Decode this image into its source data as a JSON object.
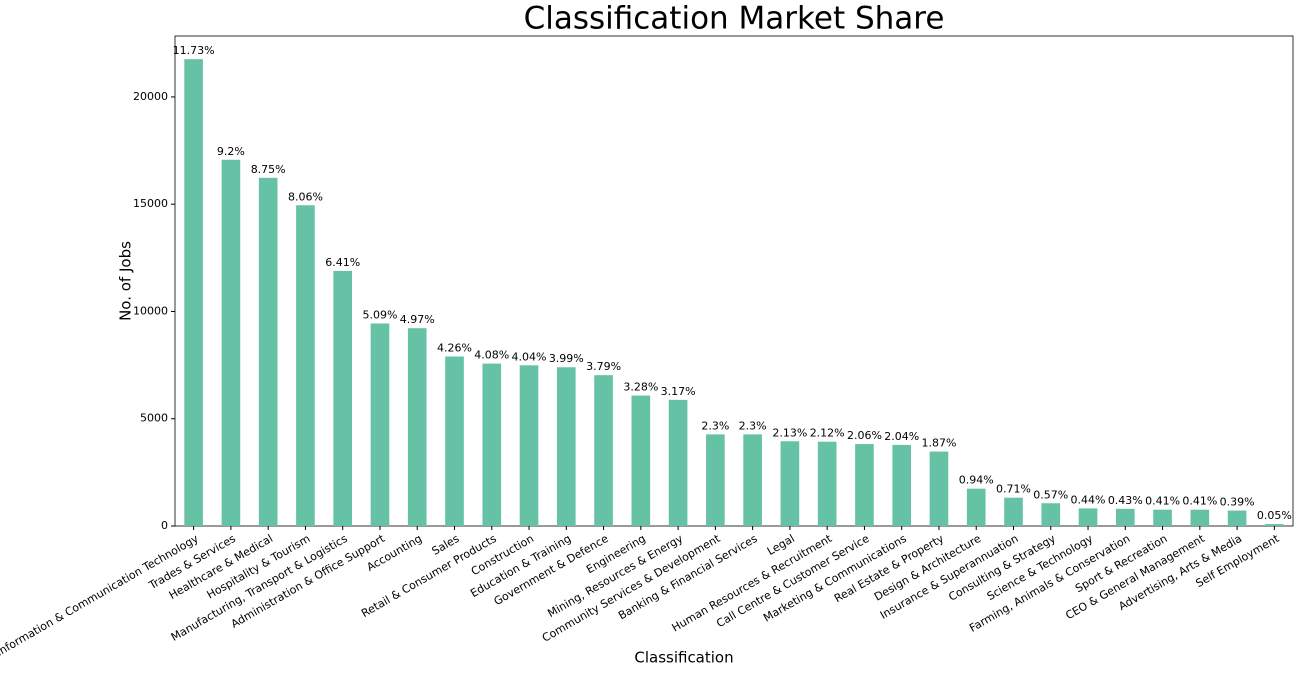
{
  "chart_data": {
    "type": "bar",
    "title": "Classification Market Share",
    "x_label": "Classification",
    "y_label": "No. of Jobs",
    "categories": [
      "Information & Communication Technology",
      "Trades & Services",
      "Healthcare & Medical",
      "Hospitality & Tourism",
      "Manufacturing, Transport & Logistics",
      "Administration & Office Support",
      "Accounting",
      "Sales",
      "Retail & Consumer Products",
      "Construction",
      "Education & Training",
      "Government & Defence",
      "Engineering",
      "Mining, Resources & Energy",
      "Community Services & Development",
      "Banking & Financial Services",
      "Legal",
      "Human Resources & Recruitment",
      "Call Centre & Customer Service",
      "Marketing & Communications",
      "Real Estate & Property",
      "Design & Architecture",
      "Insurance & Superannuation",
      "Consulting & Strategy",
      "Science & Technology",
      "Farming, Animals & Conservation",
      "Sport & Recreation",
      "CEO & General Management",
      "Advertising, Arts & Media",
      "Self Employment"
    ],
    "values": [
      21760,
      17070,
      16230,
      14950,
      11890,
      9440,
      9220,
      7900,
      7570,
      7490,
      7400,
      7030,
      6080,
      5880,
      4270,
      4270,
      3950,
      3930,
      3820,
      3780,
      3470,
      1740,
      1320,
      1060,
      820,
      800,
      760,
      760,
      720,
      90
    ],
    "data_labels": [
      "11.73%",
      "9.2%",
      "8.75%",
      "8.06%",
      "6.41%",
      "5.09%",
      "4.97%",
      "4.26%",
      "4.08%",
      "4.04%",
      "3.99%",
      "3.79%",
      "3.28%",
      "3.17%",
      "2.3%",
      "2.3%",
      "2.13%",
      "2.12%",
      "2.06%",
      "2.04%",
      "1.87%",
      "0.94%",
      "0.71%",
      "0.57%",
      "0.44%",
      "0.43%",
      "0.41%",
      "0.41%",
      "0.39%",
      "0.05%"
    ],
    "color": "#66c2a5",
    "ylim": [
      0,
      22840
    ],
    "yticks": [
      0,
      5000,
      10000,
      15000,
      20000
    ],
    "grid": false
  }
}
